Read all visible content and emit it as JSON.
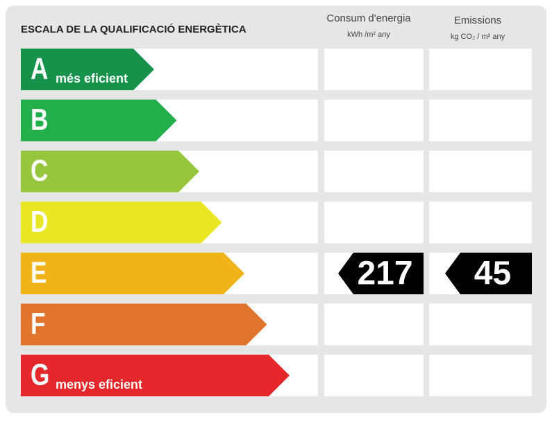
{
  "header": {
    "title": "ESCALA DE LA QUALIFICACIÓ ENERGÈTICA",
    "energy_column": {
      "title": "Consum d'energia",
      "unit": "kWh /m² any"
    },
    "emissions_column": {
      "title": "Emissions",
      "unit": "kg CO₂ / m² any"
    }
  },
  "rows": [
    {
      "letter": "A",
      "label": "més eficient",
      "color": "#16924a"
    },
    {
      "letter": "B",
      "color": "#22ae4a"
    },
    {
      "letter": "C",
      "color": "#96c63e"
    },
    {
      "letter": "D",
      "color": "#e9e724"
    },
    {
      "letter": "E",
      "color": "#f0b41a",
      "energy": 217,
      "emissions": 45
    },
    {
      "letter": "F",
      "color": "#e0742a"
    },
    {
      "letter": "G",
      "label": "menys eficient",
      "color": "#e3272a"
    }
  ]
}
